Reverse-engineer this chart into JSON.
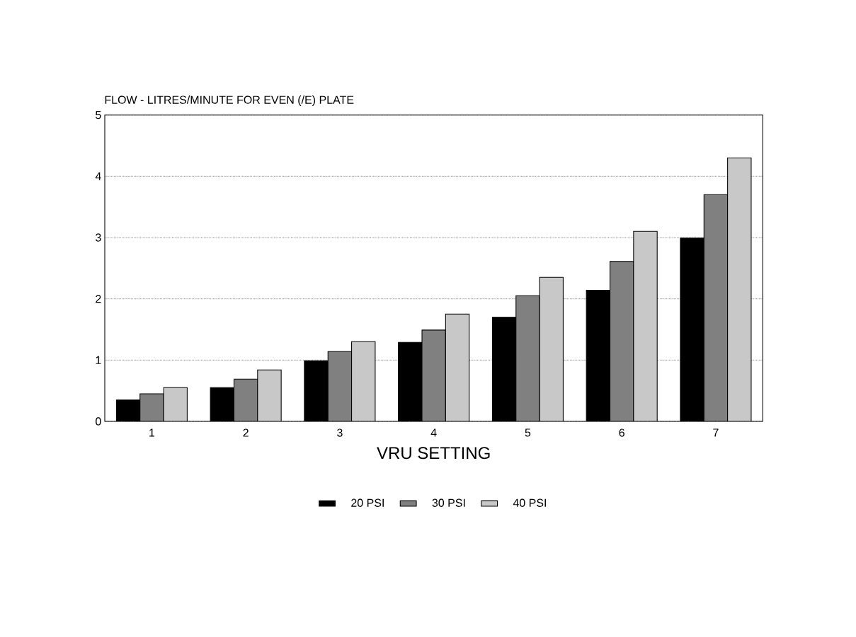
{
  "chart_data": {
    "type": "bar",
    "title": "FLOW - LITRES/MINUTE FOR EVEN (/E) PLATE",
    "xlabel": "VRU SETTING",
    "categories": [
      "1",
      "2",
      "3",
      "4",
      "5",
      "6",
      "7"
    ],
    "series": [
      {
        "name": "20 PSI",
        "color": "#000000",
        "values": [
          0.35,
          0.55,
          0.99,
          1.29,
          1.7,
          2.14,
          2.99
        ]
      },
      {
        "name": "30 PSI",
        "color": "#808080",
        "values": [
          0.45,
          0.69,
          1.14,
          1.49,
          2.05,
          2.61,
          3.7
        ]
      },
      {
        "name": "40 PSI",
        "color": "#c8c8c8",
        "values": [
          0.55,
          0.84,
          1.3,
          1.75,
          2.35,
          3.1,
          4.3
        ]
      }
    ],
    "ylim": [
      0,
      5
    ],
    "yticks": [
      0,
      1,
      2,
      3,
      4,
      5
    ],
    "grid": "y",
    "legend": "bottom"
  }
}
